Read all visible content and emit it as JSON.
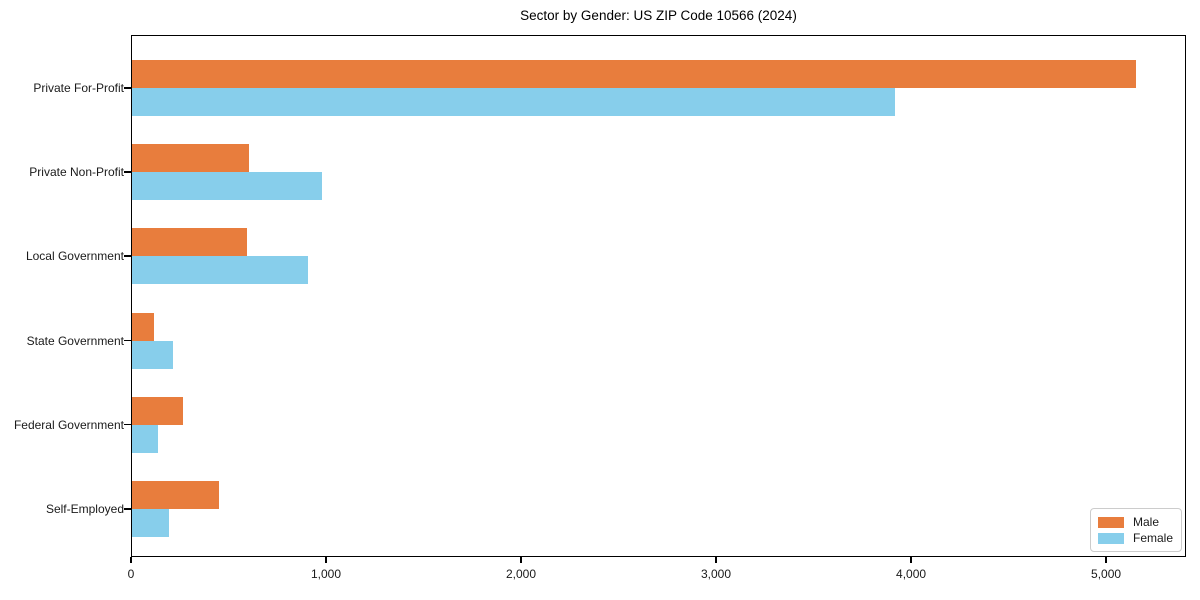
{
  "chart_data": {
    "type": "bar",
    "orientation": "horizontal",
    "title": "Sector by Gender: US ZIP Code 10566 (2024)",
    "categories": [
      "Private For-Profit",
      "Private Non-Profit",
      "Local Government",
      "State Government",
      "Federal Government",
      "Self-Employed"
    ],
    "series": [
      {
        "name": "Male",
        "color": "#e87d3d",
        "values": [
          5150,
          600,
          590,
          110,
          260,
          445
        ]
      },
      {
        "name": "Female",
        "color": "#87ceeb",
        "values": [
          3910,
          975,
          900,
          210,
          135,
          190
        ]
      }
    ],
    "xlabel": "",
    "ylabel": "",
    "xlim": [
      0,
      5410
    ],
    "x_ticks": [
      0,
      1000,
      2000,
      3000,
      4000,
      5000
    ],
    "x_tick_labels": [
      "0",
      "1,000",
      "2,000",
      "3,000",
      "4,000",
      "5,000"
    ],
    "grid": false,
    "legend_position": "lower-right",
    "background_color": "#ffffff",
    "spine_color": "#000000",
    "text_color": "#1a1a1a"
  }
}
